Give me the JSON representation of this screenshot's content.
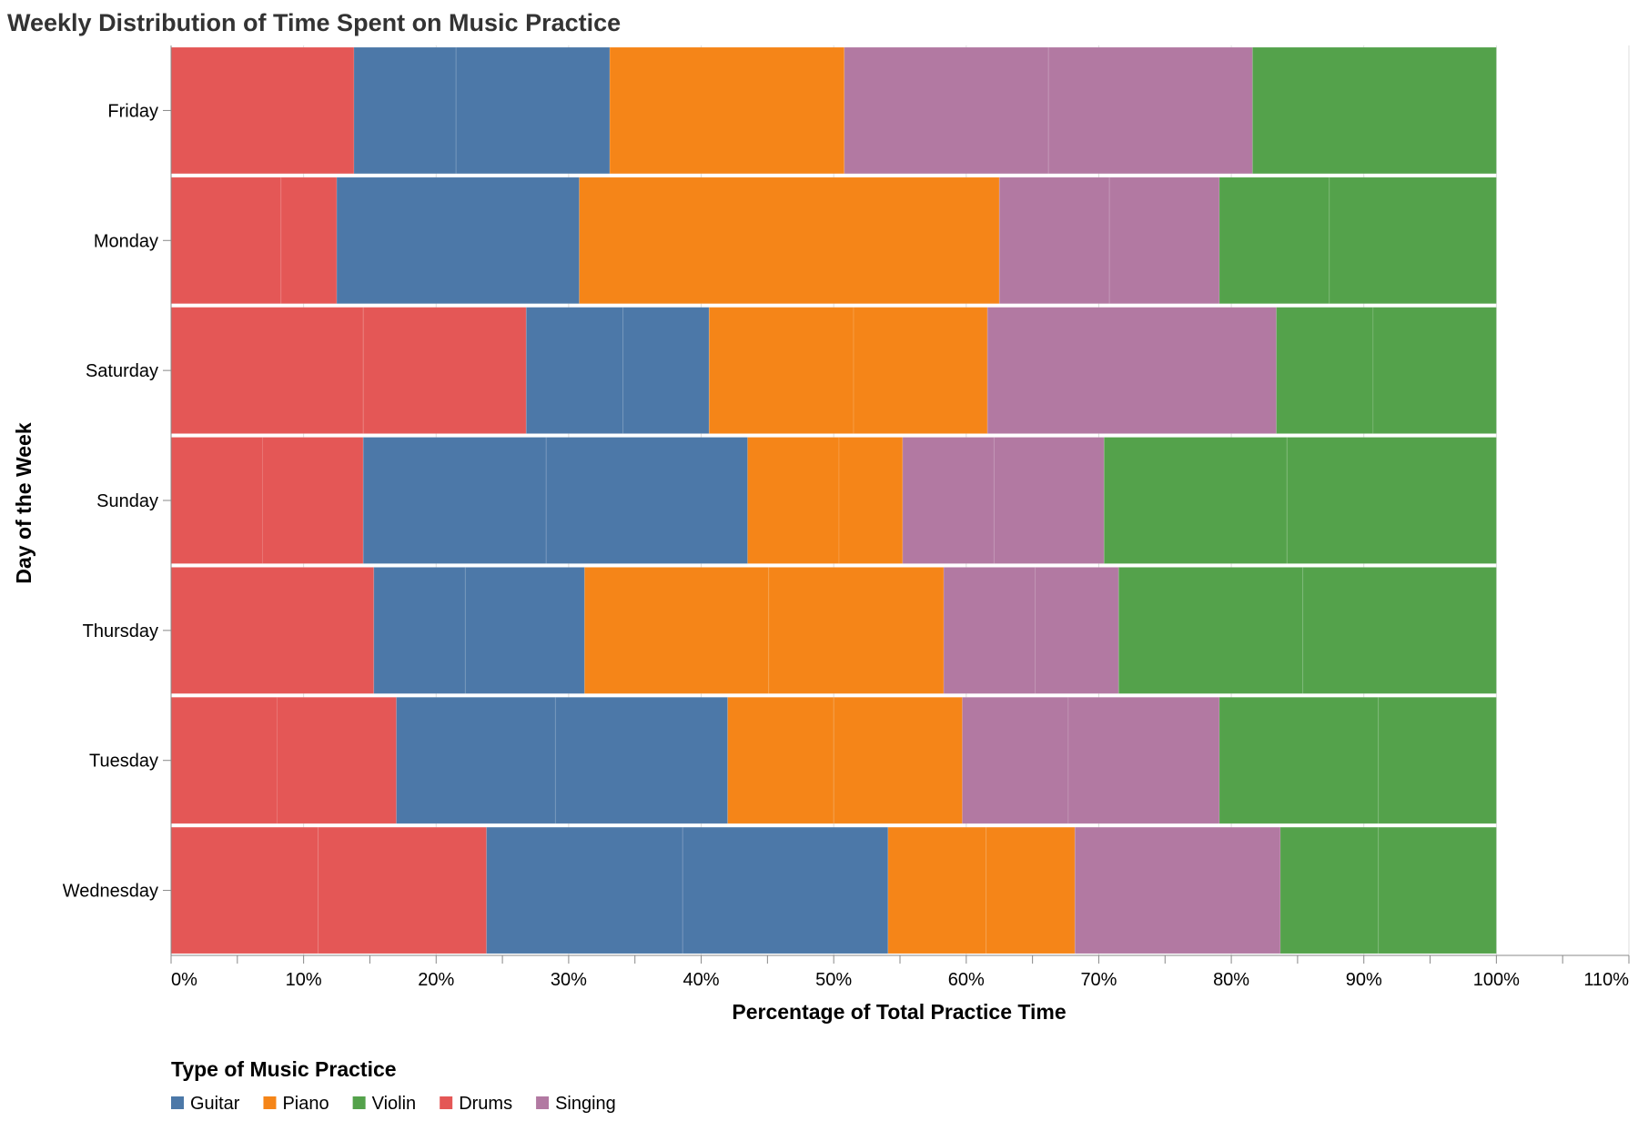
{
  "chart_data": {
    "type": "bar",
    "orientation": "horizontal",
    "stacked": "normalize",
    "title": "Weekly Distribution of Time Spent on Music Practice",
    "xlabel": "Percentage of Total Practice Time",
    "ylabel": "Day of the Week",
    "xlim": [
      0,
      1.1
    ],
    "x_ticks": [
      "0%",
      "10%",
      "20%",
      "30%",
      "40%",
      "50%",
      "60%",
      "70%",
      "80%",
      "90%",
      "100%",
      "110%"
    ],
    "grid": true,
    "legend_title": "Type of Music Practice",
    "legend_position": "bottom-left",
    "stack_order": [
      "Drums",
      "Guitar",
      "Piano",
      "Singing",
      "Violin"
    ],
    "legend": [
      {
        "name": "Guitar",
        "color": "#4c78a8"
      },
      {
        "name": "Piano",
        "color": "#f58518"
      },
      {
        "name": "Violin",
        "color": "#54a24b"
      },
      {
        "name": "Drums",
        "color": "#e45756"
      },
      {
        "name": "Singing",
        "color": "#b279a2"
      }
    ],
    "categories": [
      "Friday",
      "Monday",
      "Saturday",
      "Sunday",
      "Thursday",
      "Tuesday",
      "Wednesday"
    ],
    "bars": [
      {
        "day": "Friday",
        "segments": [
          {
            "type": "Drums",
            "value": 0.138
          },
          {
            "type": "Guitar",
            "value": 0.077
          },
          {
            "type": "Guitar",
            "value": 0.116
          },
          {
            "type": "Piano",
            "value": 0.177
          },
          {
            "type": "Singing",
            "value": 0.154
          },
          {
            "type": "Singing",
            "value": 0.154
          },
          {
            "type": "Violin",
            "value": 0.184
          }
        ]
      },
      {
        "day": "Monday",
        "segments": [
          {
            "type": "Drums",
            "value": 0.083
          },
          {
            "type": "Drums",
            "value": 0.042
          },
          {
            "type": "Guitar",
            "value": 0.183
          },
          {
            "type": "Piano",
            "value": 0.317
          },
          {
            "type": "Singing",
            "value": 0.083
          },
          {
            "type": "Singing",
            "value": 0.083
          },
          {
            "type": "Violin",
            "value": 0.083
          },
          {
            "type": "Violin",
            "value": 0.126
          }
        ]
      },
      {
        "day": "Saturday",
        "segments": [
          {
            "type": "Drums",
            "value": 0.145
          },
          {
            "type": "Drums",
            "value": 0.123
          },
          {
            "type": "Guitar",
            "value": 0.073
          },
          {
            "type": "Guitar",
            "value": 0.065
          },
          {
            "type": "Piano",
            "value": 0.109
          },
          {
            "type": "Piano",
            "value": 0.101
          },
          {
            "type": "Singing",
            "value": 0.218
          },
          {
            "type": "Violin",
            "value": 0.073
          },
          {
            "type": "Violin",
            "value": 0.093
          }
        ]
      },
      {
        "day": "Sunday",
        "segments": [
          {
            "type": "Drums",
            "value": 0.069
          },
          {
            "type": "Drums",
            "value": 0.076
          },
          {
            "type": "Guitar",
            "value": 0.138
          },
          {
            "type": "Guitar",
            "value": 0.152
          },
          {
            "type": "Piano",
            "value": 0.069
          },
          {
            "type": "Piano",
            "value": 0.048
          },
          {
            "type": "Singing",
            "value": 0.069
          },
          {
            "type": "Singing",
            "value": 0.083
          },
          {
            "type": "Violin",
            "value": 0.138
          },
          {
            "type": "Violin",
            "value": 0.158
          }
        ]
      },
      {
        "day": "Thursday",
        "segments": [
          {
            "type": "Drums",
            "value": 0.153
          },
          {
            "type": "Guitar",
            "value": 0.069
          },
          {
            "type": "Guitar",
            "value": 0.09
          },
          {
            "type": "Piano",
            "value": 0.139
          },
          {
            "type": "Piano",
            "value": 0.132
          },
          {
            "type": "Singing",
            "value": 0.069
          },
          {
            "type": "Singing",
            "value": 0.063
          },
          {
            "type": "Violin",
            "value": 0.139
          },
          {
            "type": "Violin",
            "value": 0.146
          }
        ]
      },
      {
        "day": "Tuesday",
        "segments": [
          {
            "type": "Drums",
            "value": 0.08
          },
          {
            "type": "Drums",
            "value": 0.09
          },
          {
            "type": "Guitar",
            "value": 0.12
          },
          {
            "type": "Guitar",
            "value": 0.13
          },
          {
            "type": "Piano",
            "value": 0.08
          },
          {
            "type": "Piano",
            "value": 0.097
          },
          {
            "type": "Singing",
            "value": 0.08
          },
          {
            "type": "Singing",
            "value": 0.114
          },
          {
            "type": "Violin",
            "value": 0.12
          },
          {
            "type": "Violin",
            "value": 0.089
          }
        ]
      },
      {
        "day": "Wednesday",
        "segments": [
          {
            "type": "Drums",
            "value": 0.111
          },
          {
            "type": "Drums",
            "value": 0.127
          },
          {
            "type": "Guitar",
            "value": 0.148
          },
          {
            "type": "Guitar",
            "value": 0.155
          },
          {
            "type": "Piano",
            "value": 0.074
          },
          {
            "type": "Piano",
            "value": 0.067
          },
          {
            "type": "Singing",
            "value": 0.155
          },
          {
            "type": "Violin",
            "value": 0.074
          },
          {
            "type": "Violin",
            "value": 0.089
          }
        ]
      }
    ]
  }
}
